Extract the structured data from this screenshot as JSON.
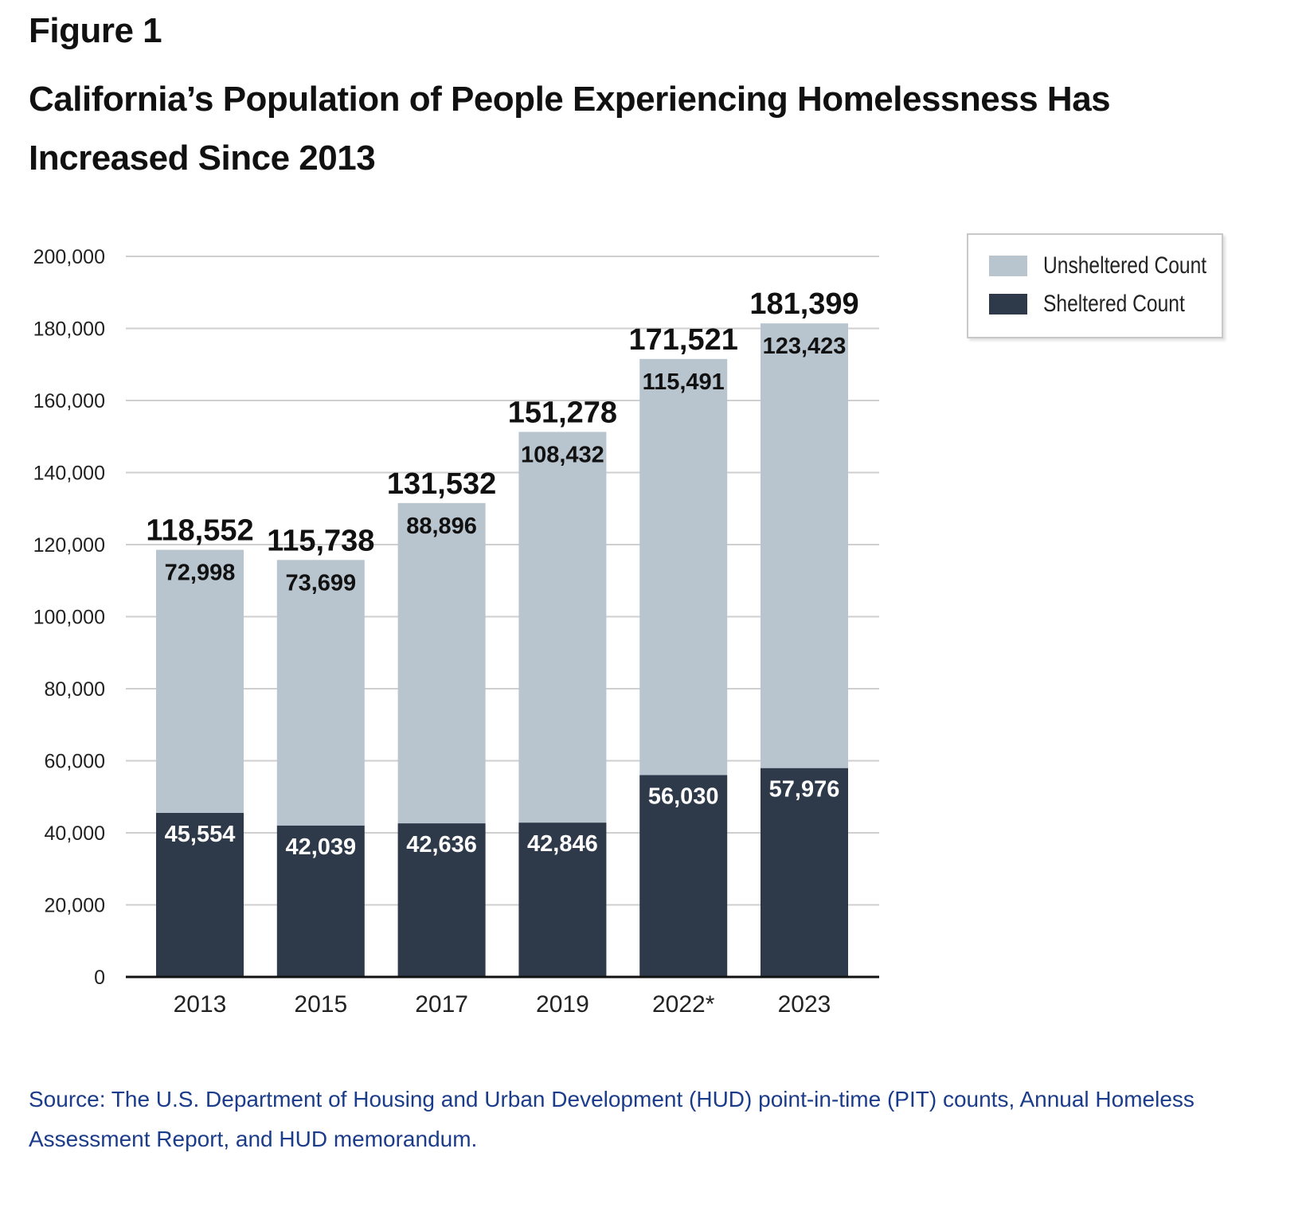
{
  "figure_label": "Figure 1",
  "title": "California’s Population of People Experiencing Homelessness Has Increased Since 2013",
  "source": "Source: The U.S. Department of Housing and Urban Development (HUD) point-in-time (PIT) counts, Annual Homeless Assessment Report, and HUD memorandum.",
  "colors": {
    "unsheltered": "#b8c5cf",
    "sheltered": "#2e3a4a",
    "gridline": "#cfcfcf",
    "source_text": "#1b3c8a"
  },
  "legend": {
    "items": [
      {
        "label": "Unsheltered Count",
        "color": "#b8c5cf"
      },
      {
        "label": "Sheltered Count",
        "color": "#2e3a4a"
      }
    ]
  },
  "chart_data": {
    "type": "bar",
    "stacked": true,
    "title": "California’s Population of People Experiencing Homelessness Has Increased Since 2013",
    "xlabel": "",
    "ylabel": "",
    "categories": [
      "2013",
      "2015",
      "2017",
      "2019",
      "2022*",
      "2023"
    ],
    "series": [
      {
        "name": "Sheltered Count",
        "values": [
          45554,
          42039,
          42636,
          42846,
          56030,
          57976
        ],
        "labels": [
          "45,554",
          "42,039",
          "42,636",
          "42,846",
          "56,030",
          "57,976"
        ]
      },
      {
        "name": "Unsheltered Count",
        "values": [
          72998,
          73699,
          88896,
          108432,
          115491,
          123423
        ],
        "labels": [
          "72,998",
          "73,699",
          "88,896",
          "108,432",
          "115,491",
          "123,423"
        ]
      }
    ],
    "totals": [
      118552,
      115738,
      131532,
      151278,
      171521,
      181399
    ],
    "total_labels": [
      "118,552",
      "115,738",
      "131,532",
      "151,278",
      "171,521",
      "181,399"
    ],
    "ylim": [
      0,
      200000
    ],
    "yticks": [
      0,
      20000,
      40000,
      60000,
      80000,
      100000,
      120000,
      140000,
      160000,
      180000,
      200000
    ],
    "ytick_labels": [
      "0",
      "20,000",
      "40,000",
      "60,000",
      "80,000",
      "100,000",
      "120,000",
      "140,000",
      "160,000",
      "180,000",
      "200,000"
    ],
    "grid": true,
    "legend_position": "top-right"
  }
}
